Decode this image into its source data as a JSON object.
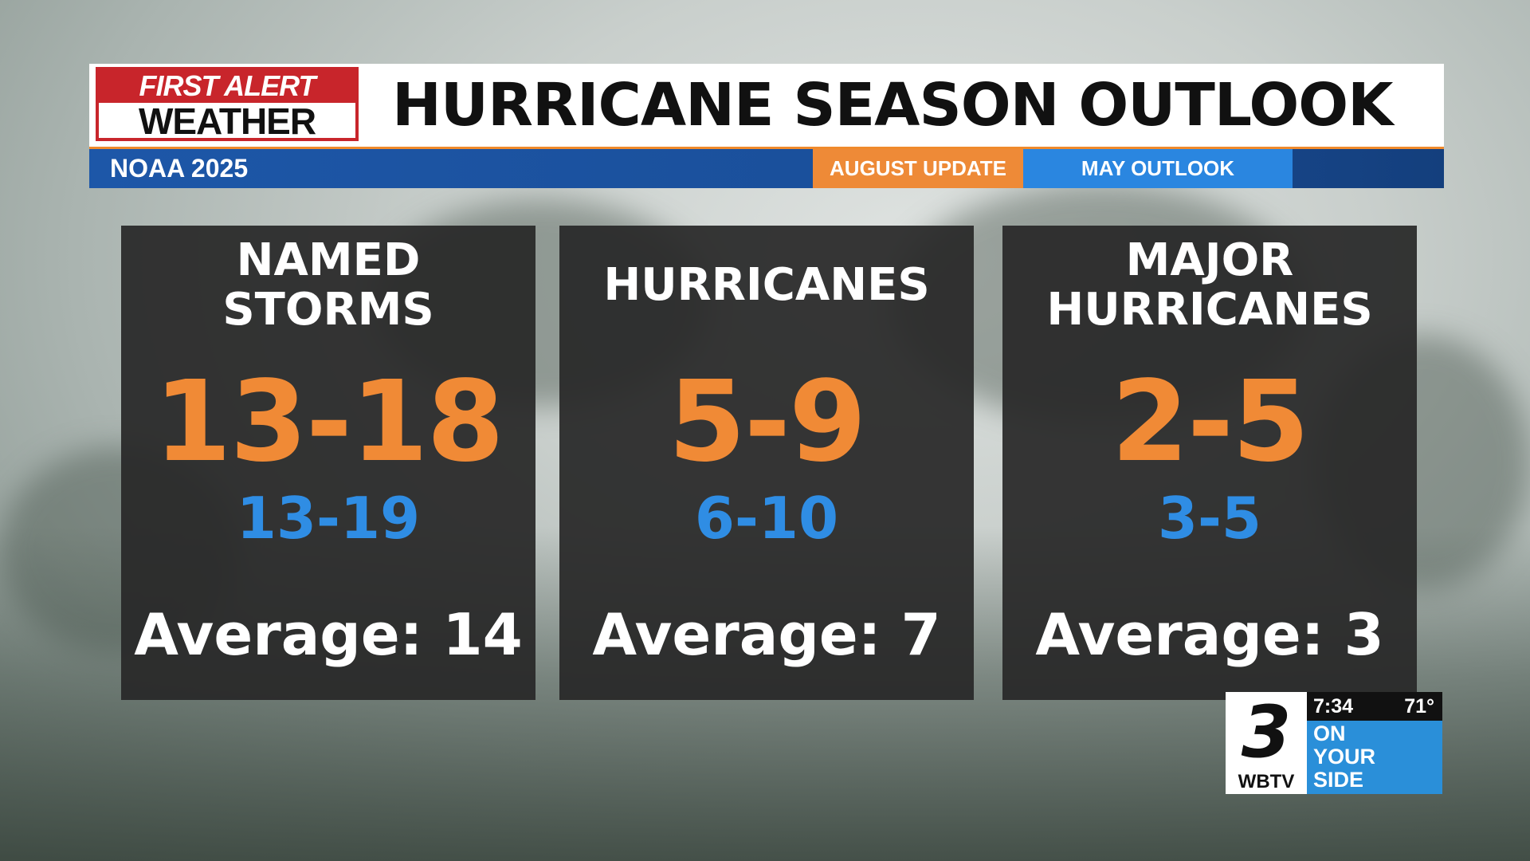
{
  "header": {
    "logo_line1": "FIRST ALERT",
    "logo_line2": "WEATHER",
    "title": "HURRICANE SEASON OUTLOOK"
  },
  "subbar": {
    "source": "NOAA 2025",
    "august_label": "AUGUST UPDATE",
    "may_label": "MAY OUTLOOK"
  },
  "cards": [
    {
      "title": "NAMED STORMS",
      "august": "13-18",
      "may": "13-19",
      "average": "Average: 14"
    },
    {
      "title": "HURRICANES",
      "august": "5-9",
      "may": "6-10",
      "average": "Average: 7"
    },
    {
      "title": "MAJOR HURRICANES",
      "august": "2-5",
      "may": "3-5",
      "average": "Average: 3"
    }
  ],
  "bug": {
    "channel": "3",
    "call_letters": "WBTV",
    "time": "7:34",
    "temp": "71°",
    "slogan": [
      "ON",
      "YOUR",
      "SIDE"
    ]
  },
  "colors": {
    "august_accent": "#f08a36",
    "may_accent": "#2f8de4",
    "subbar_blue": "#1d57a8",
    "logo_red": "#c8252b"
  }
}
